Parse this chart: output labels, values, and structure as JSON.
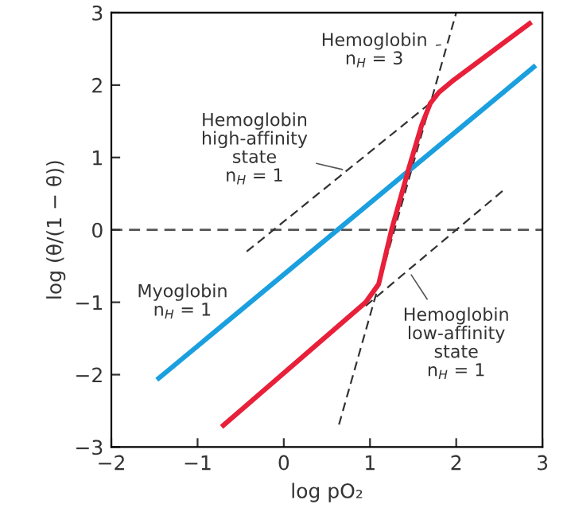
{
  "chart_data": {
    "type": "line",
    "xlabel": "log pO₂",
    "ylabel": "log (θ/(1 − θ))",
    "xlim": [
      -2,
      3
    ],
    "ylim": [
      -3,
      3
    ],
    "xticks": [
      -2,
      -1,
      0,
      1,
      2,
      3
    ],
    "yticks": [
      -3,
      -2,
      -1,
      0,
      1,
      2,
      3
    ],
    "grid": false,
    "legend": false,
    "marker": "none",
    "series": [
      {
        "color": "#1a9fdf",
        "line_style": "solid",
        "x": [
          -1.45,
          2.9
        ],
        "values": [
          -2.05,
          2.25
        ]
      },
      {
        "color": "#e8203a",
        "line_style": "solid",
        "x": [
          -0.7,
          0.95,
          1.1,
          1.25,
          1.45,
          1.6,
          1.7,
          1.8,
          1.95,
          2.85
        ],
        "values": [
          -2.7,
          -1.0,
          -0.75,
          0.0,
          0.85,
          1.45,
          1.75,
          1.9,
          2.05,
          2.85
        ]
      },
      {
        "color": "#333333",
        "line_style": "dashed",
        "x": [
          -0.43,
          1.75
        ],
        "values": [
          -0.3,
          1.8
        ]
      },
      {
        "color": "#333333",
        "line_style": "dashed",
        "x": [
          0.95,
          2.55
        ],
        "values": [
          -1.05,
          0.55
        ]
      },
      {
        "color": "#333333",
        "line_style": "dashed",
        "x": [
          0.64,
          2.0
        ],
        "values": [
          -2.69,
          3.0
        ]
      }
    ],
    "ref_lines": [
      {
        "axis": "y",
        "value": 0,
        "color": "#555555",
        "line_style": "dashed"
      }
    ],
    "annotations": [
      {
        "text": "Hemoglobin\nn$_{H}$ = 3",
        "x": 1.87,
        "y": 2.56
      },
      {
        "text": "Hemoglobin\nhigh-affinity\nstate\nn$_{H}$ = 1",
        "x": 0.73,
        "y": 0.82
      },
      "Myoglobin\nn$_{H}$ = 1",
      {
        "text": "Hemoglobin\nlow-affinity\nstate\nn$_{H}$ = 1",
        "x": 1.45,
        "y": -0.57
      }
    ]
  }
}
